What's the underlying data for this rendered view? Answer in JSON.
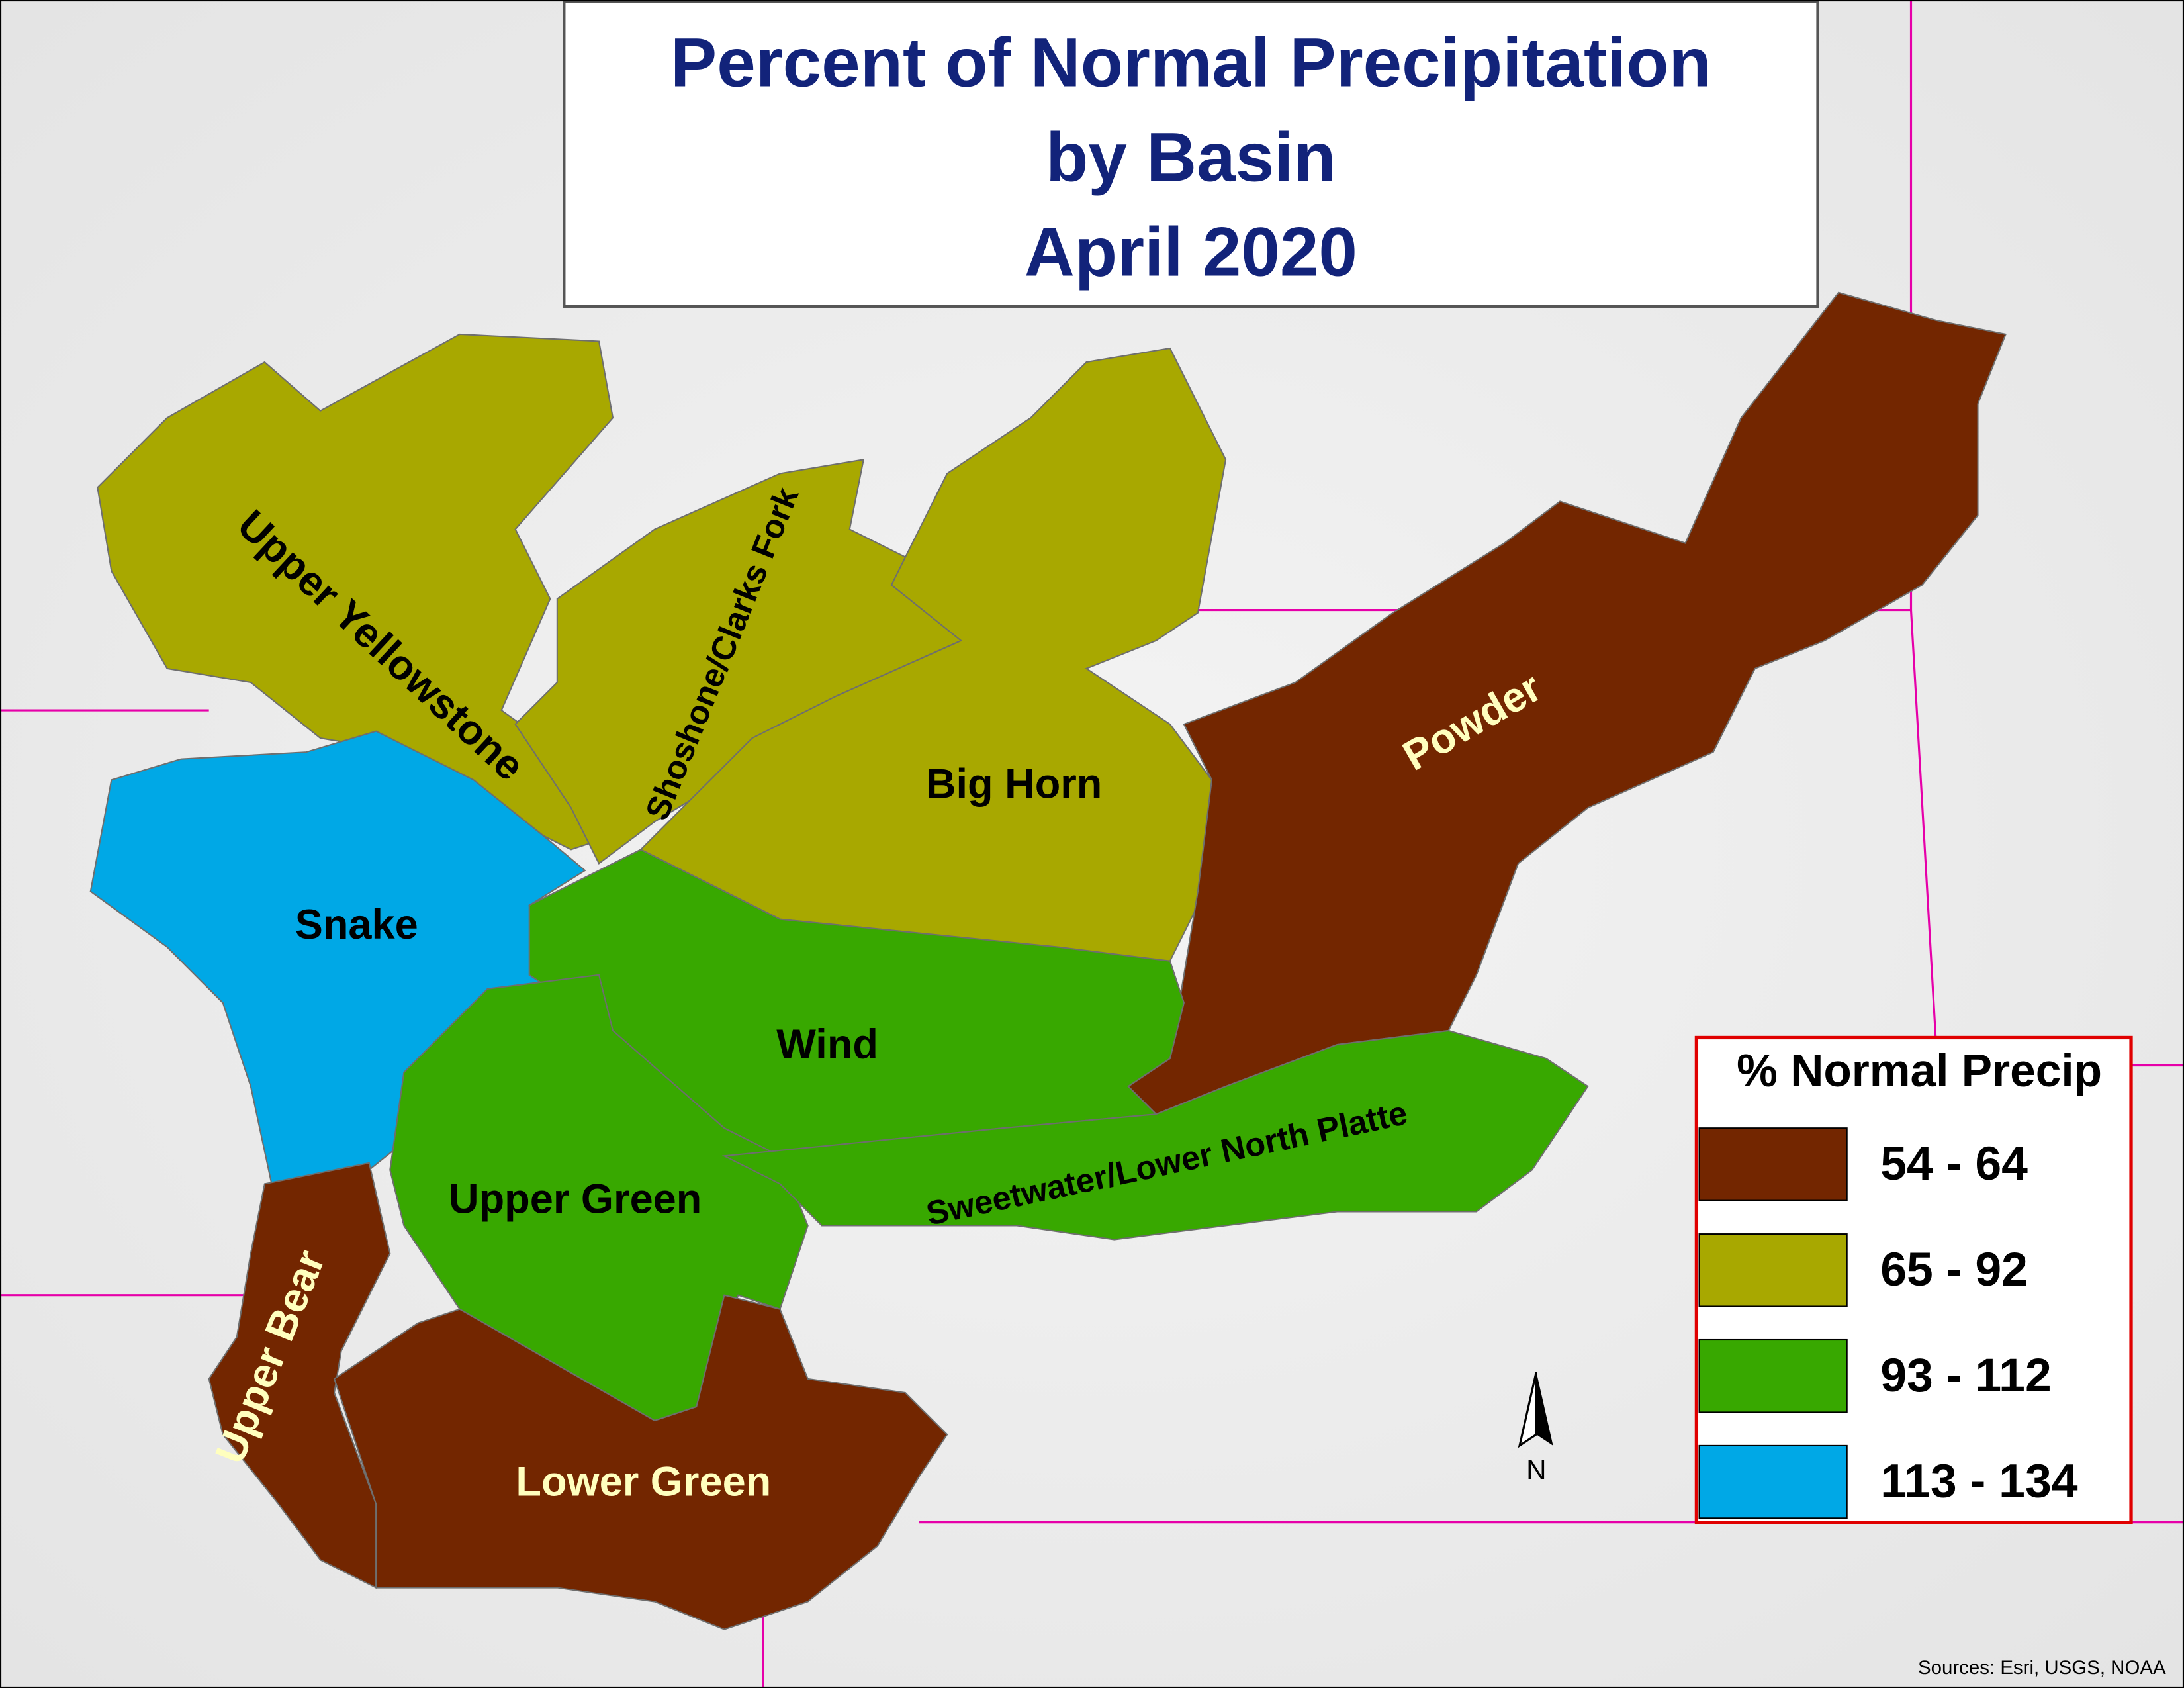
{
  "title": [
    "Percent of Normal Precipitation",
    "by Basin",
    "April 2020"
  ],
  "basins": [
    {
      "label": "Upper Yellowstone",
      "color": "#a8a800",
      "label_color": "#000000"
    },
    {
      "label": "Shoshone/Clarks Fork",
      "color": "#a8a800",
      "label_color": "#000000"
    },
    {
      "label": "Big Horn",
      "color": "#a8a800",
      "label_color": "#000000"
    },
    {
      "label": "Powder",
      "color": "#732600",
      "label_color": "#ffffbe"
    },
    {
      "label": "Snake",
      "color": "#00a8e6",
      "label_color": "#000000"
    },
    {
      "label": "Wind",
      "color": "#38a800",
      "label_color": "#000000"
    },
    {
      "label": "Upper Green",
      "color": "#38a800",
      "label_color": "#000000"
    },
    {
      "label": "Sweetwater/Lower North Platte",
      "color": "#38a800",
      "label_color": "#000000"
    },
    {
      "label": "Upper Bear",
      "color": "#732600",
      "label_color": "#ffffbe"
    },
    {
      "label": "Lower Green",
      "color": "#732600",
      "label_color": "#ffffbe"
    }
  ],
  "legend": {
    "title": "% Normal Precip",
    "items": [
      {
        "label": "54 - 64",
        "color": "#732600"
      },
      {
        "label": "65 - 92",
        "color": "#a8a800"
      },
      {
        "label": "93 - 112",
        "color": "#38a800"
      },
      {
        "label": "113 - 134",
        "color": "#00a8e6"
      }
    ]
  },
  "north_arrow": "N",
  "sources": "Sources: Esri, USGS, NOAA"
}
